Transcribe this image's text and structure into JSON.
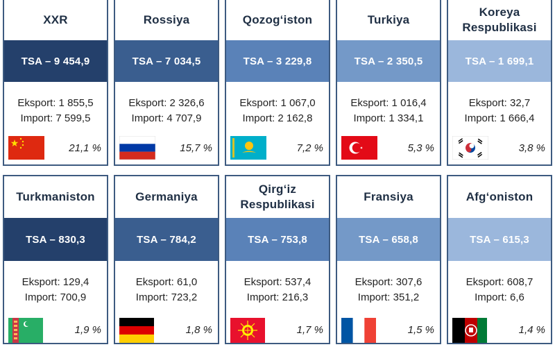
{
  "cards": [
    {
      "country": "XXR",
      "tsa": "TSA – 9 454,9",
      "export": "Eksport: 1 855,5",
      "import": "Import: 7 599,5",
      "share": "21,1 %",
      "tsa_color": "#24406b",
      "flag": "china-flag-icon"
    },
    {
      "country": "Rossiya",
      "tsa": "TSA – 7 034,5",
      "export": "Eksport: 2 326,6",
      "import": "Import: 4 707,9",
      "share": "15,7 %",
      "tsa_color": "#3a5e8f",
      "flag": "russia-flag-icon"
    },
    {
      "country": "Qozog‘iston",
      "tsa": "TSA – 3 229,8",
      "export": "Eksport: 1 067,0",
      "import": "Import: 2 162,8",
      "share": "7,2 %",
      "tsa_color": "#5a82b8",
      "flag": "kazakhstan-flag-icon"
    },
    {
      "country": "Turkiya",
      "tsa": "TSA – 2 350,5",
      "export": "Eksport: 1 016,4",
      "import": "Import: 1 334,1",
      "share": "5,3 %",
      "tsa_color": "#7499c8",
      "flag": "turkey-flag-icon"
    },
    {
      "country": "Koreya Respublikasi",
      "tsa": "TSA – 1 699,1",
      "export": "Eksport: 32,7",
      "import": "Import: 1 666,4",
      "share": "3,8 %",
      "tsa_color": "#9bb7dc",
      "flag": "south-korea-flag-icon"
    },
    {
      "country": "Turkmaniston",
      "tsa": "TSA – 830,3",
      "export": "Eksport: 129,4",
      "import": "Import: 700,9",
      "share": "1,9 %",
      "tsa_color": "#24406b",
      "flag": "turkmenistan-flag-icon"
    },
    {
      "country": "Germaniya",
      "tsa": "TSA – 784,2",
      "export": "Eksport: 61,0",
      "import": "Import: 723,2",
      "share": "1,8 %",
      "tsa_color": "#3a5e8f",
      "flag": "germany-flag-icon"
    },
    {
      "country": "Qirg‘iz Respublikasi",
      "tsa": "TSA – 753,8",
      "export": "Eksport: 537,4",
      "import": "Import: 216,3",
      "share": "1,7 %",
      "tsa_color": "#5a82b8",
      "flag": "kyrgyzstan-flag-icon"
    },
    {
      "country": "Fransiya",
      "tsa": "TSA – 658,8",
      "export": "Eksport: 307,6",
      "import": "Import: 351,2",
      "share": "1,5 %",
      "tsa_color": "#7499c8",
      "flag": "france-flag-icon"
    },
    {
      "country": "Afg‘oniston",
      "tsa": "TSA – 615,3",
      "export": "Eksport: 608,7",
      "import": "Import: 6,6",
      "share": "1,4 %",
      "tsa_color": "#9bb7dc",
      "flag": "afghanistan-flag-icon"
    }
  ]
}
